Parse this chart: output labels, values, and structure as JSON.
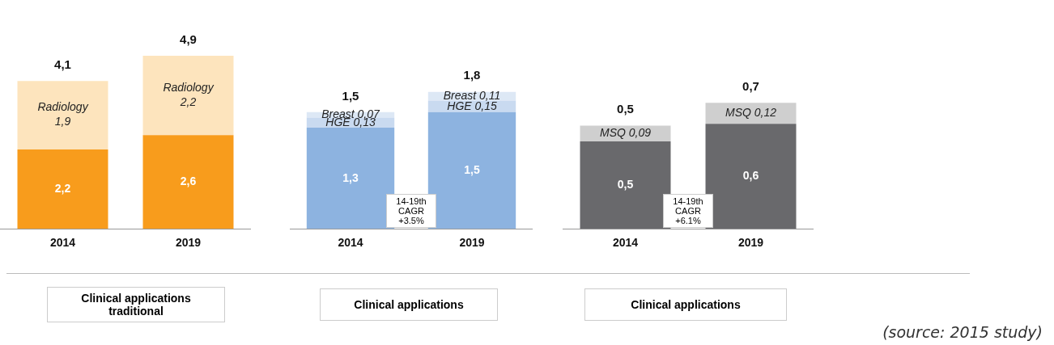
{
  "chart_data": [
    {
      "type": "bar",
      "stacked": true,
      "categories": [
        "2014",
        "2019"
      ],
      "series": [
        {
          "color": "#f89c1c",
          "values": [
            2.2,
            2.6
          ],
          "value_labels": [
            "2,2",
            "2,6"
          ]
        },
        {
          "name": "Radiology",
          "color": "#fde4bd",
          "values": [
            1.9,
            2.2
          ],
          "value_labels": [
            "1,9",
            "2,2"
          ]
        }
      ],
      "totals": [
        "4,1",
        "4,9"
      ],
      "xlabel": "Clinical applications traditional",
      "legend": false,
      "grid": false
    },
    {
      "type": "bar",
      "stacked": true,
      "categories": [
        "2014",
        "2019"
      ],
      "series": [
        {
          "color": "#8db3e0",
          "values": [
            1.3,
            1.5
          ],
          "value_labels": [
            "1,3",
            "1,5"
          ]
        },
        {
          "name": "HGE",
          "color": "#c9daf0",
          "values": [
            0.13,
            0.15
          ],
          "value_labels": [
            "0,13",
            "0,15"
          ]
        },
        {
          "name": "Breast",
          "color": "#dde8f5",
          "values": [
            0.07,
            0.11
          ],
          "value_labels": [
            "0,07",
            "0,11"
          ]
        }
      ],
      "totals": [
        "1,5",
        "1,8"
      ],
      "xlabel": "Clinical applications",
      "annotations": [
        "14-19th CAGR +3.5%"
      ],
      "legend": false,
      "grid": false
    },
    {
      "type": "bar",
      "stacked": true,
      "categories": [
        "2014",
        "2019"
      ],
      "series": [
        {
          "color": "#69696c",
          "values": [
            0.5,
            0.6
          ],
          "value_labels": [
            "0,5",
            "0,6"
          ]
        },
        {
          "name": "MSQ",
          "color": "#cfcfcf",
          "values": [
            0.09,
            0.12
          ],
          "value_labels": [
            "0,09",
            "0,12"
          ]
        }
      ],
      "totals": [
        "0,5",
        "0,7"
      ],
      "xlabel": "Clinical applications",
      "annotations": [
        "14-19th CAGR +6.1%"
      ],
      "legend": false,
      "grid": false
    },
    {
      "type": "other",
      "annotations": [
        "(source: 2015 study)"
      ]
    }
  ]
}
